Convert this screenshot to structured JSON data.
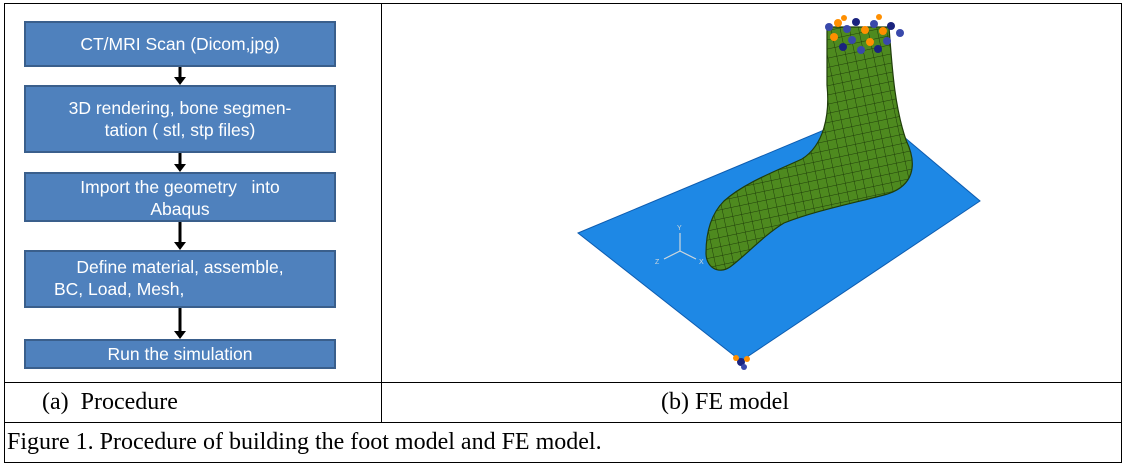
{
  "flowchart": {
    "steps": [
      {
        "lines": [
          "CT/MRI Scan (Dicom,jpg)"
        ]
      },
      {
        "lines": [
          "3D rendering, bone segmen-",
          "tation ( stl, stp files)"
        ]
      },
      {
        "lines": [
          "Import the geometry   into",
          "Abaqus"
        ]
      },
      {
        "lines": [
          "Define material, assemble,",
          "BC, Load, Mesh,"
        ]
      },
      {
        "lines": [
          "Run the simulation"
        ]
      }
    ],
    "box_color": "#4f81bd",
    "arrow_color": "#000000"
  },
  "fe_model": {
    "axis_labels": {
      "y": "Y",
      "x": "X",
      "z": "Z"
    },
    "plate_color": "#1e88e5",
    "mesh_color": "#4e8a1f"
  },
  "captions": {
    "left": "(a)  Procedure",
    "right": "(b) FE model",
    "figure": "Figure 1. Procedure of building the foot model and FE model."
  }
}
